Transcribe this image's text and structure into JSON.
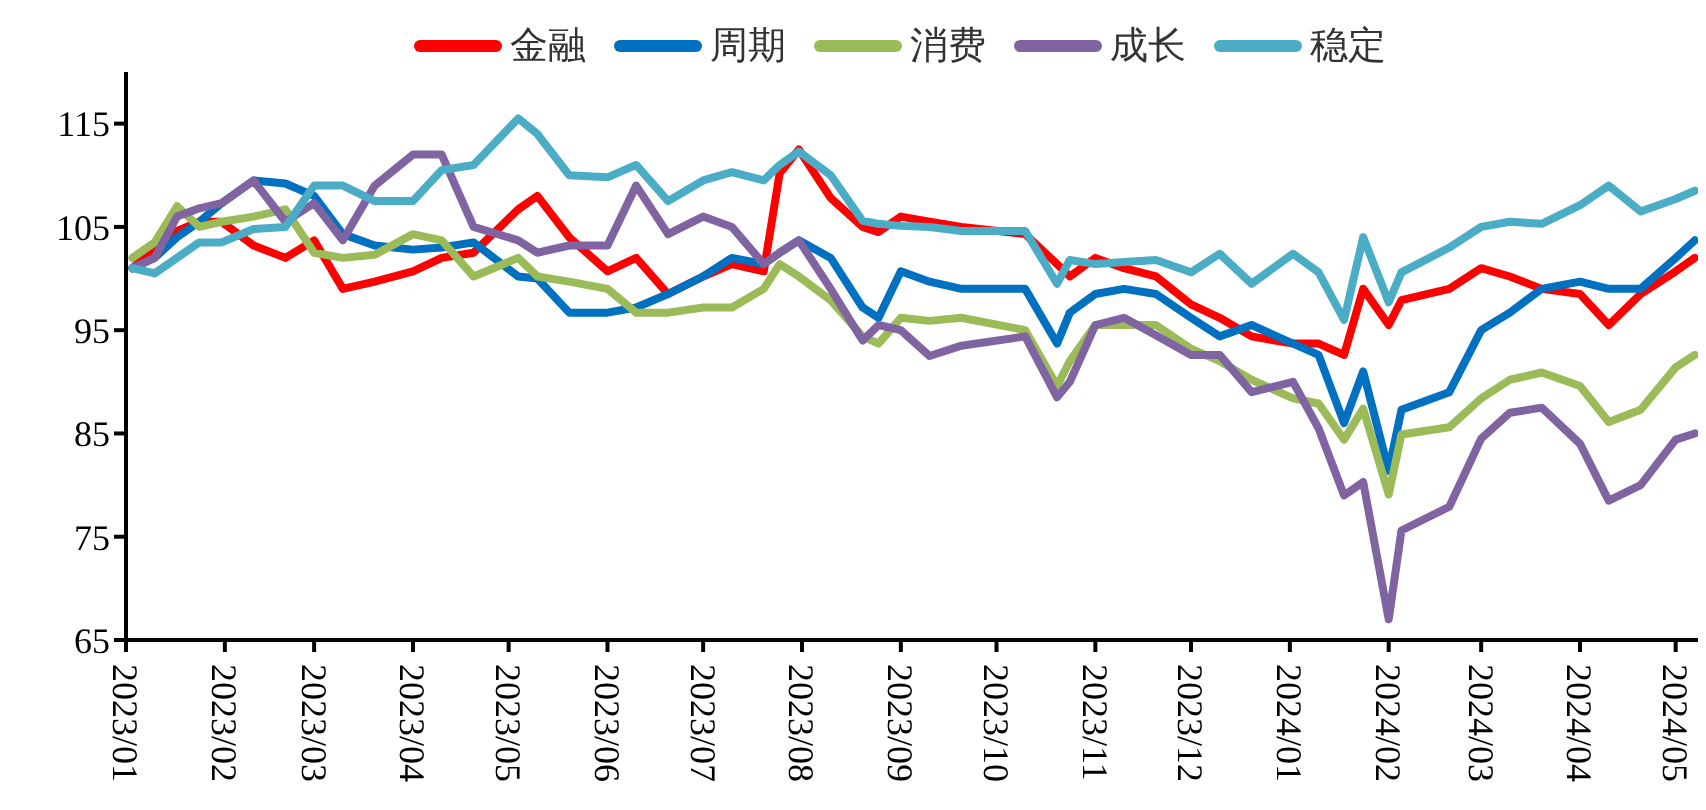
{
  "chart_data": {
    "type": "line",
    "x": [
      "2023-01-03",
      "2023-01-10",
      "2023-01-17",
      "2023-01-24",
      "2023-01-31",
      "2023-02-10",
      "2023-02-20",
      "2023-03-01",
      "2023-03-10",
      "2023-03-20",
      "2023-04-01",
      "2023-04-10",
      "2023-04-20",
      "2023-05-04",
      "2023-05-10",
      "2023-05-20",
      "2023-06-01",
      "2023-06-10",
      "2023-06-20",
      "2023-07-01",
      "2023-07-10",
      "2023-07-20",
      "2023-07-25",
      "2023-07-31",
      "2023-08-10",
      "2023-08-20",
      "2023-08-25",
      "2023-09-01",
      "2023-09-10",
      "2023-09-20",
      "2023-10-10",
      "2023-10-20",
      "2023-10-24",
      "2023-11-01",
      "2023-11-10",
      "2023-11-20",
      "2023-12-01",
      "2023-12-10",
      "2023-12-20",
      "2024-01-02",
      "2024-01-10",
      "2024-01-18",
      "2024-01-24",
      "2024-02-01",
      "2024-02-05",
      "2024-02-20",
      "2024-03-01",
      "2024-03-10",
      "2024-03-20",
      "2024-04-01",
      "2024-04-10",
      "2024-04-20",
      "2024-05-01",
      "2024-05-07"
    ],
    "series": [
      {
        "name": "金融",
        "color": "#ff0000",
        "values": [
          101,
          103,
          104.6,
          105.5,
          105.5,
          103.2,
          102,
          103.7,
          99,
          99.7,
          100.7,
          102,
          102.5,
          106.7,
          108,
          104,
          100.7,
          102,
          98.5,
          100.2,
          101.4,
          100.7,
          110.2,
          112.5,
          107.8,
          105,
          104.5,
          106,
          105.5,
          105,
          104.3,
          101.4,
          100.2,
          102,
          101,
          100.2,
          97.5,
          96.2,
          94.4,
          93.7,
          93.7,
          92.6,
          99,
          95.5,
          97.9,
          99,
          101,
          100.2,
          99,
          98.5,
          95.5,
          98.5,
          100.7,
          102
        ]
      },
      {
        "name": "周期",
        "color": "#0070c0",
        "values": [
          101,
          102,
          104,
          105.5,
          107.3,
          109.5,
          109.2,
          108,
          104.3,
          103.2,
          102.8,
          103,
          103.5,
          100.2,
          100,
          96.7,
          96.7,
          97.2,
          98.5,
          100.2,
          102,
          101.4,
          102.5,
          103.7,
          102,
          97.2,
          96.2,
          100.7,
          99.7,
          99,
          99,
          93.7,
          96.7,
          98.5,
          99,
          98.5,
          96.2,
          94.4,
          95.5,
          93.7,
          92.6,
          86,
          91,
          81.4,
          87.3,
          89,
          95,
          96.7,
          99,
          99.7,
          99,
          99,
          102,
          103.7
        ]
      },
      {
        "name": "消费",
        "color": "#9bbb59",
        "values": [
          102,
          103.5,
          107,
          105,
          105.5,
          106,
          106.7,
          102.5,
          102,
          102.3,
          104.3,
          103.7,
          100.2,
          102,
          100.2,
          99.7,
          99,
          96.7,
          96.7,
          97.2,
          97.2,
          99,
          101.4,
          100.2,
          97.9,
          94.4,
          93.7,
          96.2,
          95.9,
          96.2,
          95,
          89.6,
          92,
          95.5,
          95.5,
          95.5,
          93.2,
          92,
          90.2,
          88.4,
          87.9,
          84.4,
          87.4,
          79.1,
          84.9,
          85.6,
          88.4,
          90.2,
          90.9,
          89.6,
          86.1,
          87.3,
          91.4,
          92.6
        ]
      },
      {
        "name": "成长",
        "color": "#8064a2",
        "values": [
          101,
          102,
          106,
          106.8,
          107.3,
          109.5,
          105.5,
          107.3,
          103.7,
          109,
          112,
          112,
          105,
          103.7,
          102.5,
          103.2,
          103.2,
          109,
          104.3,
          106,
          105,
          101.4,
          102.5,
          103.7,
          99,
          94,
          95.5,
          95,
          92.5,
          93.5,
          94.4,
          88.5,
          90,
          95.5,
          96.2,
          94.5,
          92.6,
          92.6,
          89,
          90,
          85.5,
          79,
          80.3,
          67,
          75.6,
          77.9,
          84.5,
          87,
          87.5,
          84,
          78.5,
          80,
          84.4,
          85
        ]
      },
      {
        "name": "稳定",
        "color": "#4bacc6",
        "values": [
          101,
          100.5,
          102,
          103.5,
          103.5,
          104.8,
          105,
          109,
          109,
          107.5,
          107.5,
          110.5,
          111,
          115.5,
          114,
          110,
          109.8,
          111,
          107.5,
          109.5,
          110.3,
          109.5,
          111,
          112.3,
          110,
          105.6,
          105.3,
          105.1,
          105,
          104.6,
          104.6,
          99.5,
          101.8,
          101.4,
          101.6,
          101.8,
          100.6,
          102.4,
          99.5,
          102.4,
          100.6,
          96,
          104,
          97.7,
          100.6,
          103,
          105,
          105.5,
          105.3,
          107.1,
          109,
          106.5,
          107.7,
          108.5
        ]
      }
    ],
    "xlim": [
      "2023-01-01",
      "2024-05-08"
    ],
    "xticks": [
      {
        "value": "2023-01-01",
        "label": "2023/01"
      },
      {
        "value": "2023-02-01",
        "label": "2023/02"
      },
      {
        "value": "2023-03-01",
        "label": "2023/03"
      },
      {
        "value": "2023-04-01",
        "label": "2023/04"
      },
      {
        "value": "2023-05-01",
        "label": "2023/05"
      },
      {
        "value": "2023-06-01",
        "label": "2023/06"
      },
      {
        "value": "2023-07-01",
        "label": "2023/07"
      },
      {
        "value": "2023-08-01",
        "label": "2023/08"
      },
      {
        "value": "2023-09-01",
        "label": "2023/09"
      },
      {
        "value": "2023-10-01",
        "label": "2023/10"
      },
      {
        "value": "2023-11-01",
        "label": "2023/11"
      },
      {
        "value": "2023-12-01",
        "label": "2023/12"
      },
      {
        "value": "2024-01-01",
        "label": "2024/01"
      },
      {
        "value": "2024-02-01",
        "label": "2024/02"
      },
      {
        "value": "2024-03-01",
        "label": "2024/03"
      },
      {
        "value": "2024-04-01",
        "label": "2024/04"
      },
      {
        "value": "2024-05-01",
        "label": "2024/05"
      }
    ],
    "ylim": [
      65,
      120
    ],
    "yticks": [
      65,
      75,
      85,
      95,
      105,
      115
    ],
    "grid": false,
    "legend": "top",
    "marker": "none",
    "line_style": "solid"
  }
}
